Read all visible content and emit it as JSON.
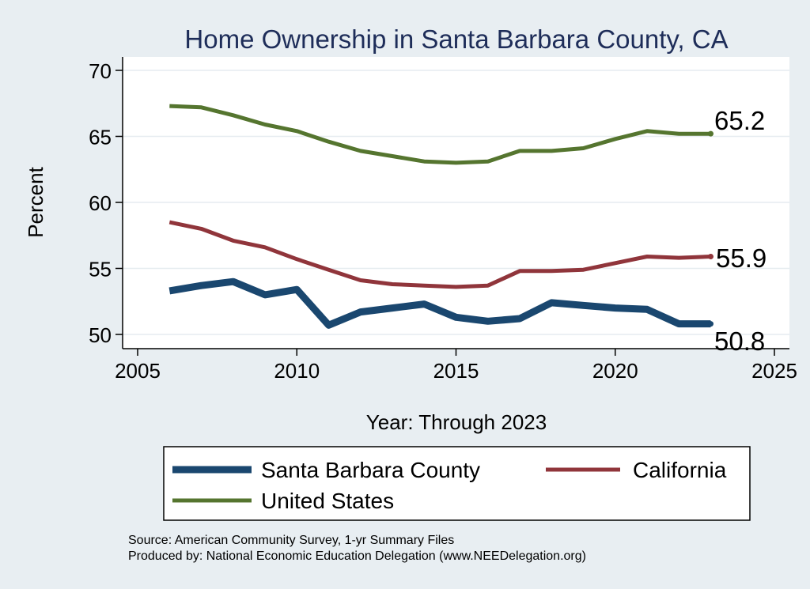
{
  "chart_data": {
    "type": "line",
    "title": "Home Ownership in Santa Barbara County, CA",
    "xlabel": "Year: Through 2023",
    "ylabel": "Percent",
    "xlim": [
      2005,
      2025
    ],
    "ylim": [
      50,
      70
    ],
    "x_ticks": [
      2005,
      2010,
      2015,
      2020,
      2025
    ],
    "y_ticks": [
      50,
      55,
      60,
      65,
      70
    ],
    "grid": true,
    "legend_position": "bottom",
    "source_line": "Source: American Community Survey, 1-yr Summary Files",
    "produced_line": "Produced by: National Economic Education Delegation (www.NEEDelegation.org)",
    "x": [
      2006,
      2007,
      2008,
      2009,
      2010,
      2011,
      2012,
      2013,
      2014,
      2015,
      2016,
      2017,
      2018,
      2019,
      2020,
      2021,
      2022,
      2023
    ],
    "series": [
      {
        "name": "Santa Barbara County",
        "color": "#1a476f",
        "width": 9,
        "end_label": "50.8",
        "values": [
          53.3,
          53.7,
          54.0,
          53.0,
          53.4,
          50.7,
          51.7,
          52.0,
          52.3,
          51.3,
          51.0,
          51.2,
          52.4,
          52.2,
          52.0,
          51.9,
          50.8,
          50.8
        ]
      },
      {
        "name": "California",
        "color": "#90353b",
        "width": 5,
        "end_label": "55.9",
        "values": [
          58.5,
          58.0,
          57.1,
          56.6,
          55.7,
          54.9,
          54.1,
          53.8,
          53.7,
          53.6,
          53.7,
          54.8,
          54.8,
          54.9,
          55.4,
          55.9,
          55.8,
          55.9
        ]
      },
      {
        "name": "United States",
        "color": "#55752f",
        "width": 5,
        "end_label": "65.2",
        "values": [
          67.3,
          67.2,
          66.6,
          65.9,
          65.4,
          64.6,
          63.9,
          63.5,
          63.1,
          63.0,
          63.1,
          63.9,
          63.9,
          64.1,
          64.8,
          65.4,
          65.2,
          65.2
        ]
      }
    ]
  }
}
